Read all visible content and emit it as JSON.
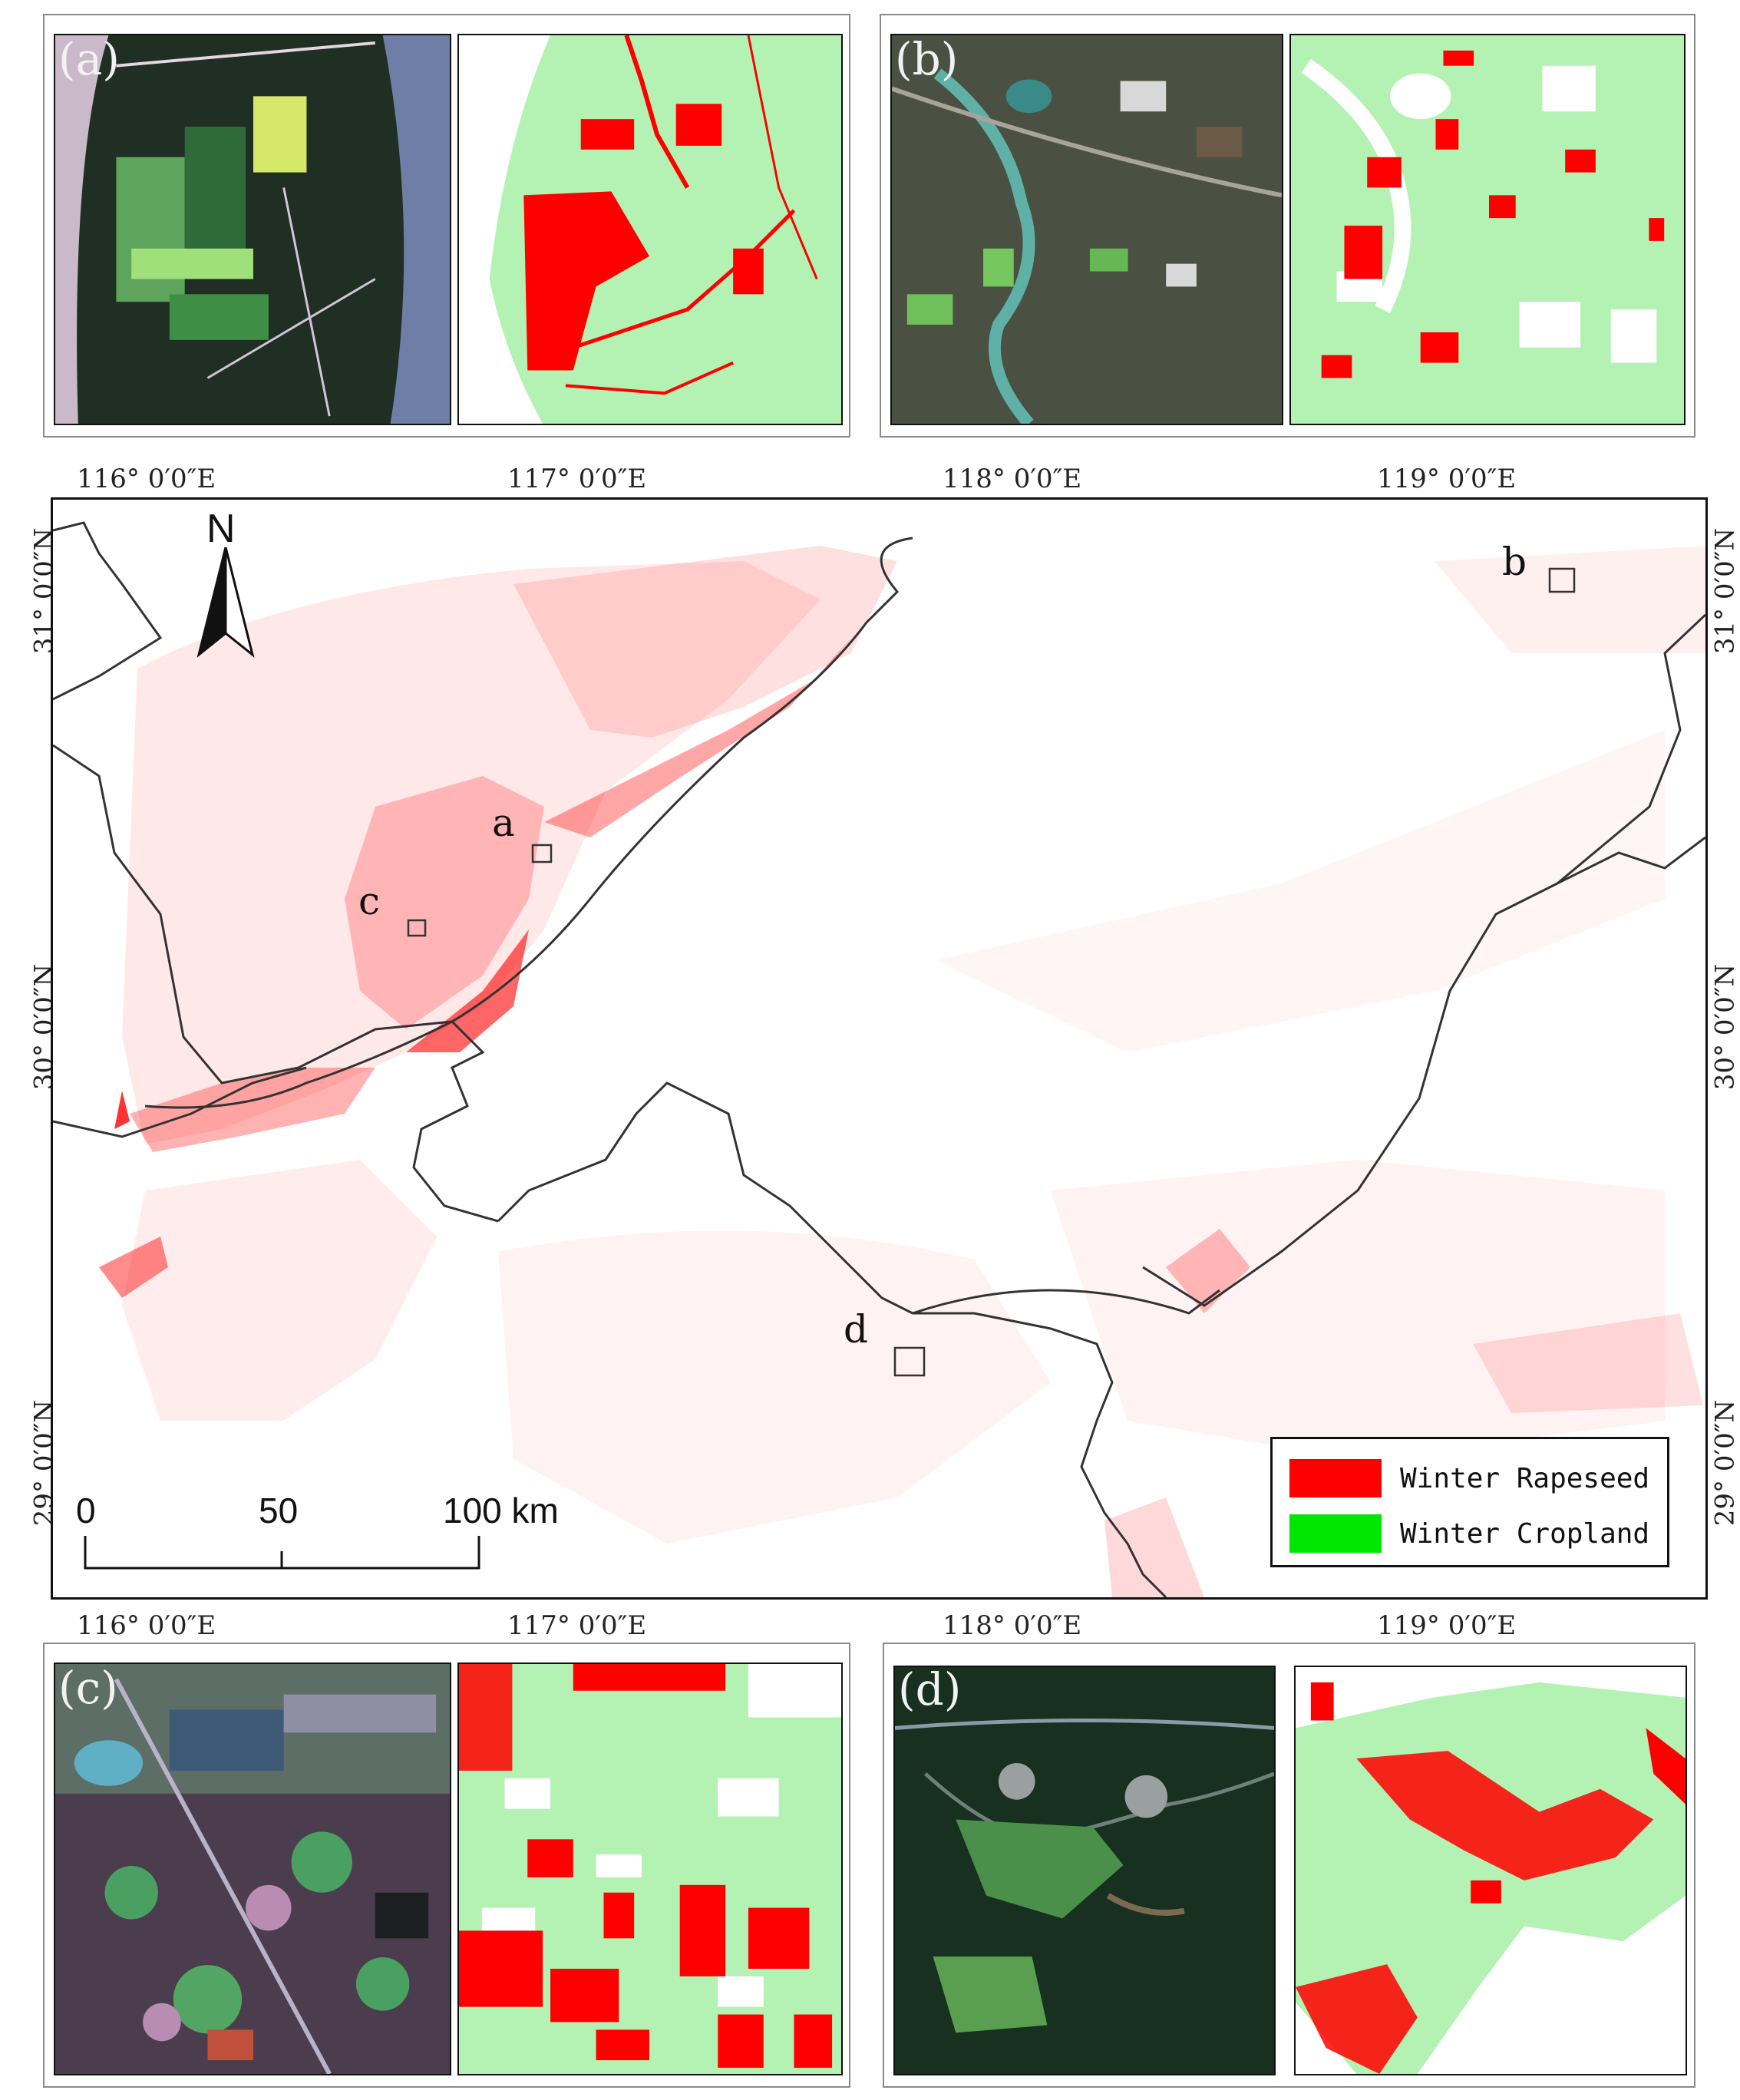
{
  "panels": {
    "a": {
      "label": "(a)"
    },
    "b": {
      "label": "(b)"
    },
    "c": {
      "label": "(c)"
    },
    "d": {
      "label": "(d)"
    }
  },
  "map": {
    "lon_labels": [
      "116° 0′0″E",
      "117° 0′0″E",
      "118° 0′0″E",
      "119° 0′0″E"
    ],
    "lat_labels": [
      "31° 0′0″N",
      "30° 0′0″N",
      "29° 0′0″N"
    ],
    "north_label": "N",
    "box_labels": {
      "a": "a",
      "b": "b",
      "c": "c",
      "d": "d"
    },
    "scale_bar": {
      "tick_0": "0",
      "tick_50": "50",
      "tick_100": "100 km"
    }
  },
  "legend": {
    "items": [
      {
        "label": "Winter Rapeseed",
        "color": "#ff0000"
      },
      {
        "label": "Winter Cropland",
        "color": "#00e600"
      }
    ]
  },
  "colors": {
    "rapeseed": "#ff0000",
    "cropland_light": "#b3f2b3",
    "boundary": "#333333"
  }
}
